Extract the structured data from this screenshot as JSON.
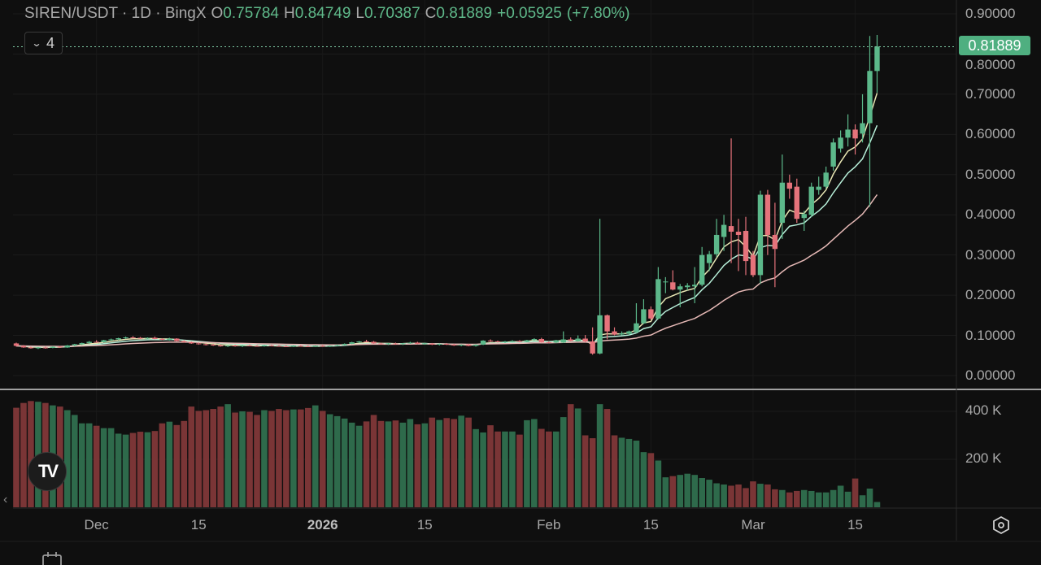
{
  "header": {
    "symbol": "SIREN/USDT",
    "sep1": "·",
    "interval": "1D",
    "sep2": "·",
    "exchange": "BingX",
    "open_label": "O",
    "open": "0.75784",
    "high_label": "H",
    "high": "0.84749",
    "low_label": "L",
    "low": "0.70387",
    "close_label": "C",
    "close": "0.81889",
    "change": "+0.05925",
    "change_pct": "(+7.80%)"
  },
  "indicators_toggle": {
    "chevron": "⌄",
    "count": "4"
  },
  "last_price_label": "0.81889",
  "price_axis_labels": [
    "0.90000",
    "0.80000",
    "0.70000",
    "0.60000",
    "0.50000",
    "0.40000",
    "0.30000",
    "0.20000",
    "0.10000",
    "0.00000"
  ],
  "volume_axis_labels": [
    "400 K",
    "200 K"
  ],
  "time_axis_labels": [
    {
      "label": "Dec",
      "index": 11,
      "bold": false
    },
    {
      "label": "15",
      "index": 25,
      "bold": false
    },
    {
      "label": "2026",
      "index": 42,
      "bold": true
    },
    {
      "label": "15",
      "index": 56,
      "bold": false
    },
    {
      "label": "Feb",
      "index": 73,
      "bold": false
    },
    {
      "label": "15",
      "index": 87,
      "bold": false
    },
    {
      "label": "Mar",
      "index": 101,
      "bold": false
    },
    {
      "label": "15",
      "index": 115,
      "bold": false
    }
  ],
  "logo_text": "TV",
  "scroll_left": "‹",
  "colors": {
    "up": "#5cb88a",
    "down": "#e5737b",
    "vol_up": "#2e6a4b",
    "vol_down": "#7a3536",
    "ma_fast": "#e9e7b4",
    "ma_mid": "#b7efd9",
    "ma_slow": "#e6b9b6",
    "background": "#0f0f0f"
  },
  "icons": {
    "settings": "hexagon-settings-icon",
    "calendar": "calendar-icon",
    "logo": "tradingview-logo"
  },
  "chart_data": {
    "type": "candlestick",
    "title": "SIREN/USDT · 1D · BingX",
    "ylim": [
      0,
      0.9
    ],
    "volume_ylim_k": [
      0,
      450
    ],
    "last_price": 0.81889,
    "ohlc": [
      [
        0.08,
        0.082,
        0.072,
        0.074
      ],
      [
        0.074,
        0.076,
        0.069,
        0.07
      ],
      [
        0.07,
        0.072,
        0.067,
        0.068
      ],
      [
        0.068,
        0.071,
        0.066,
        0.07
      ],
      [
        0.07,
        0.072,
        0.067,
        0.069
      ],
      [
        0.069,
        0.073,
        0.068,
        0.072
      ],
      [
        0.072,
        0.074,
        0.069,
        0.07
      ],
      [
        0.07,
        0.076,
        0.069,
        0.075
      ],
      [
        0.075,
        0.079,
        0.073,
        0.078
      ],
      [
        0.078,
        0.082,
        0.076,
        0.081
      ],
      [
        0.081,
        0.086,
        0.079,
        0.084
      ],
      [
        0.084,
        0.088,
        0.082,
        0.083
      ],
      [
        0.083,
        0.089,
        0.082,
        0.088
      ],
      [
        0.088,
        0.092,
        0.086,
        0.09
      ],
      [
        0.09,
        0.094,
        0.088,
        0.093
      ],
      [
        0.093,
        0.097,
        0.091,
        0.095
      ],
      [
        0.095,
        0.098,
        0.092,
        0.094
      ],
      [
        0.094,
        0.096,
        0.091,
        0.092
      ],
      [
        0.092,
        0.095,
        0.09,
        0.094
      ],
      [
        0.094,
        0.097,
        0.09,
        0.091
      ],
      [
        0.091,
        0.093,
        0.088,
        0.089
      ],
      [
        0.089,
        0.094,
        0.087,
        0.092
      ],
      [
        0.092,
        0.093,
        0.085,
        0.086
      ],
      [
        0.086,
        0.088,
        0.082,
        0.083
      ],
      [
        0.083,
        0.085,
        0.079,
        0.08
      ],
      [
        0.08,
        0.082,
        0.077,
        0.078
      ],
      [
        0.078,
        0.08,
        0.075,
        0.077
      ],
      [
        0.077,
        0.079,
        0.074,
        0.075
      ],
      [
        0.075,
        0.077,
        0.072,
        0.073
      ],
      [
        0.073,
        0.076,
        0.071,
        0.075
      ],
      [
        0.075,
        0.077,
        0.072,
        0.073
      ],
      [
        0.073,
        0.076,
        0.071,
        0.075
      ],
      [
        0.075,
        0.077,
        0.073,
        0.074
      ],
      [
        0.074,
        0.076,
        0.072,
        0.073
      ],
      [
        0.073,
        0.076,
        0.072,
        0.075
      ],
      [
        0.075,
        0.077,
        0.073,
        0.074
      ],
      [
        0.074,
        0.076,
        0.072,
        0.073
      ],
      [
        0.073,
        0.075,
        0.071,
        0.072
      ],
      [
        0.072,
        0.075,
        0.071,
        0.074
      ],
      [
        0.074,
        0.076,
        0.072,
        0.073
      ],
      [
        0.073,
        0.075,
        0.071,
        0.072
      ],
      [
        0.072,
        0.075,
        0.071,
        0.074
      ],
      [
        0.074,
        0.076,
        0.072,
        0.073
      ],
      [
        0.073,
        0.075,
        0.071,
        0.074
      ],
      [
        0.074,
        0.077,
        0.073,
        0.076
      ],
      [
        0.076,
        0.08,
        0.075,
        0.079
      ],
      [
        0.079,
        0.084,
        0.078,
        0.083
      ],
      [
        0.083,
        0.086,
        0.081,
        0.085
      ],
      [
        0.085,
        0.089,
        0.083,
        0.084
      ],
      [
        0.084,
        0.086,
        0.079,
        0.08
      ],
      [
        0.08,
        0.082,
        0.077,
        0.078
      ],
      [
        0.078,
        0.081,
        0.076,
        0.08
      ],
      [
        0.08,
        0.082,
        0.077,
        0.078
      ],
      [
        0.078,
        0.081,
        0.076,
        0.08
      ],
      [
        0.08,
        0.084,
        0.079,
        0.082
      ],
      [
        0.082,
        0.084,
        0.078,
        0.079
      ],
      [
        0.079,
        0.082,
        0.077,
        0.08
      ],
      [
        0.08,
        0.081,
        0.076,
        0.077
      ],
      [
        0.077,
        0.08,
        0.075,
        0.079
      ],
      [
        0.079,
        0.081,
        0.076,
        0.077
      ],
      [
        0.077,
        0.079,
        0.074,
        0.075
      ],
      [
        0.075,
        0.078,
        0.073,
        0.077
      ],
      [
        0.077,
        0.079,
        0.073,
        0.074
      ],
      [
        0.074,
        0.078,
        0.072,
        0.077
      ],
      [
        0.077,
        0.088,
        0.076,
        0.087
      ],
      [
        0.087,
        0.09,
        0.084,
        0.085
      ],
      [
        0.085,
        0.087,
        0.082,
        0.083
      ],
      [
        0.083,
        0.086,
        0.081,
        0.085
      ],
      [
        0.085,
        0.088,
        0.083,
        0.086
      ],
      [
        0.086,
        0.088,
        0.083,
        0.084
      ],
      [
        0.084,
        0.089,
        0.083,
        0.088
      ],
      [
        0.088,
        0.093,
        0.087,
        0.091
      ],
      [
        0.091,
        0.094,
        0.082,
        0.083
      ],
      [
        0.083,
        0.085,
        0.08,
        0.082
      ],
      [
        0.082,
        0.089,
        0.081,
        0.088
      ],
      [
        0.082,
        0.11,
        0.081,
        0.09
      ],
      [
        0.09,
        0.095,
        0.085,
        0.086
      ],
      [
        0.086,
        0.1,
        0.084,
        0.092
      ],
      [
        0.092,
        0.101,
        0.083,
        0.085
      ],
      [
        0.085,
        0.12,
        0.052,
        0.055
      ],
      [
        0.055,
        0.39,
        0.053,
        0.15
      ],
      [
        0.15,
        0.152,
        0.09,
        0.11
      ],
      [
        0.11,
        0.12,
        0.1,
        0.102
      ],
      [
        0.102,
        0.11,
        0.1,
        0.105
      ],
      [
        0.104,
        0.112,
        0.1,
        0.11
      ],
      [
        0.108,
        0.18,
        0.106,
        0.13
      ],
      [
        0.13,
        0.19,
        0.128,
        0.165
      ],
      [
        0.165,
        0.172,
        0.138,
        0.142
      ],
      [
        0.142,
        0.27,
        0.14,
        0.24
      ],
      [
        0.232,
        0.245,
        0.205,
        0.234
      ],
      [
        0.232,
        0.262,
        0.212,
        0.214
      ],
      [
        0.214,
        0.228,
        0.17,
        0.222
      ],
      [
        0.22,
        0.23,
        0.212,
        0.224
      ],
      [
        0.222,
        0.27,
        0.18,
        0.226
      ],
      [
        0.226,
        0.32,
        0.222,
        0.3
      ],
      [
        0.28,
        0.31,
        0.26,
        0.302
      ],
      [
        0.302,
        0.39,
        0.295,
        0.35
      ],
      [
        0.345,
        0.4,
        0.31,
        0.375
      ],
      [
        0.372,
        0.59,
        0.28,
        0.358
      ],
      [
        0.358,
        0.39,
        0.26,
        0.35
      ],
      [
        0.36,
        0.395,
        0.25,
        0.285
      ],
      [
        0.3,
        0.31,
        0.245,
        0.25
      ],
      [
        0.25,
        0.46,
        0.228,
        0.45
      ],
      [
        0.45,
        0.462,
        0.3,
        0.35
      ],
      [
        0.35,
        0.43,
        0.22,
        0.315
      ],
      [
        0.38,
        0.55,
        0.34,
        0.48
      ],
      [
        0.48,
        0.5,
        0.44,
        0.465
      ],
      [
        0.47,
        0.49,
        0.38,
        0.39
      ],
      [
        0.392,
        0.41,
        0.36,
        0.402
      ],
      [
        0.4,
        0.48,
        0.395,
        0.47
      ],
      [
        0.462,
        0.495,
        0.45,
        0.47
      ],
      [
        0.47,
        0.52,
        0.465,
        0.505
      ],
      [
        0.52,
        0.59,
        0.51,
        0.58
      ],
      [
        0.565,
        0.61,
        0.555,
        0.592
      ],
      [
        0.592,
        0.65,
        0.57,
        0.612
      ],
      [
        0.612,
        0.625,
        0.55,
        0.59
      ],
      [
        0.602,
        0.7,
        0.58,
        0.628
      ],
      [
        0.628,
        0.845,
        0.42,
        0.758
      ],
      [
        0.75784,
        0.84749,
        0.70387,
        0.81889
      ]
    ],
    "volume_k": [
      415,
      435,
      443,
      440,
      435,
      425,
      420,
      405,
      385,
      350,
      350,
      340,
      330,
      330,
      307,
      303,
      310,
      315,
      313,
      318,
      350,
      357,
      343,
      360,
      420,
      402,
      405,
      410,
      420,
      430,
      395,
      400,
      398,
      385,
      405,
      402,
      410,
      405,
      408,
      408,
      414,
      425,
      402,
      388,
      380,
      370,
      353,
      340,
      358,
      385,
      360,
      358,
      362,
      353,
      368,
      346,
      350,
      374,
      364,
      372,
      368,
      382,
      374,
      326,
      312,
      342,
      316,
      316,
      316,
      303,
      363,
      368,
      327,
      316,
      316,
      376,
      430,
      412,
      300,
      288,
      430,
      410,
      300,
      290,
      285,
      278,
      230,
      226,
      195,
      125,
      130,
      135,
      140,
      135,
      122,
      115,
      100,
      95,
      90,
      95,
      80,
      108,
      98,
      95,
      75,
      72,
      62,
      68,
      72,
      68,
      62,
      62,
      72,
      90,
      65,
      120,
      50,
      78,
      22
    ]
  }
}
